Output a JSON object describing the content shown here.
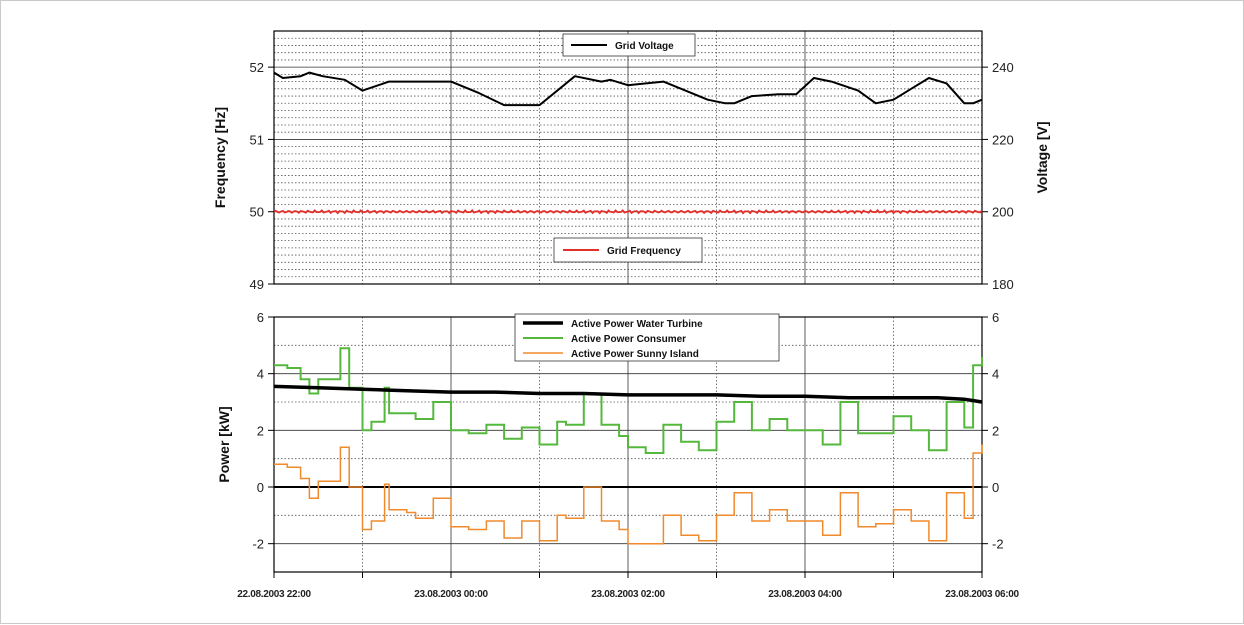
{
  "chart_data": [
    {
      "type": "line",
      "panel": "top",
      "ylabel": "Frequency [Hz]",
      "y2label": "Voltage [V]",
      "ylim": [
        49,
        52.5
      ],
      "y2lim": [
        180,
        250
      ],
      "yticks": [
        "49",
        "50",
        "51",
        "52"
      ],
      "y2ticks": [
        "180",
        "200",
        "220",
        "240"
      ],
      "grid": true,
      "legend": [
        "Grid Voltage",
        "Grid Frequency"
      ],
      "x_unit": "hours since 22.08.2003 22:00",
      "series": [
        {
          "name": "Grid Voltage",
          "axis": "right",
          "color": "#000000",
          "x": [
            0,
            0.1,
            0.3,
            0.4,
            0.55,
            0.8,
            1.0,
            1.3,
            1.6,
            1.85,
            2.0,
            2.3,
            2.6,
            3.0,
            3.4,
            3.7,
            3.8,
            4.0,
            4.4,
            4.7,
            4.9,
            5.1,
            5.2,
            5.4,
            5.7,
            5.9,
            6.1,
            6.3,
            6.6,
            6.8,
            7.0,
            7.2,
            7.4,
            7.6,
            7.8,
            7.9,
            8.0
          ],
          "values": [
            238.5,
            237,
            237.5,
            238.5,
            237.5,
            236.5,
            233.5,
            236,
            236,
            236,
            236,
            233,
            229.5,
            229.5,
            237.5,
            236,
            236.5,
            235,
            236,
            233,
            231,
            230,
            230,
            232,
            232.5,
            232.5,
            237,
            236,
            233.5,
            230,
            231,
            234,
            237,
            235.5,
            230,
            230,
            231
          ]
        },
        {
          "name": "Grid Frequency",
          "axis": "left",
          "color": "#e2302b",
          "x": [
            0,
            1,
            2,
            3,
            4,
            5,
            6,
            7,
            8
          ],
          "values": [
            50.0,
            50.0,
            50.0,
            50.0,
            50.0,
            50.0,
            50.0,
            50.0,
            50.0
          ]
        }
      ]
    },
    {
      "type": "line",
      "panel": "bottom",
      "ylabel": "Power [kW]",
      "ylim": [
        -3,
        6
      ],
      "yticks": [
        "-2",
        "0",
        "2",
        "4",
        "6"
      ],
      "y2ticks": [
        "-2",
        "0",
        "2",
        "4",
        "6"
      ],
      "grid": true,
      "legend": [
        "Active Power Water Turbine",
        "Active Power Consumer",
        "Active Power Sunny Island"
      ],
      "x_unit": "hours since 22.08.2003 22:00",
      "xtick_labels": [
        "22.08.2003 22:00",
        "23.08.2003 00:00",
        "23.08.2003 02:00",
        "23.08.2003 04:00",
        "23.08.2003 06:00"
      ],
      "series": [
        {
          "name": "Active Power Water Turbine",
          "color": "#000000",
          "x": [
            0,
            0.5,
            1.0,
            1.5,
            2.0,
            2.5,
            3.0,
            3.5,
            4.0,
            4.5,
            5.0,
            5.5,
            6.0,
            6.5,
            7.0,
            7.5,
            7.8,
            8.0
          ],
          "values": [
            3.55,
            3.5,
            3.45,
            3.4,
            3.35,
            3.35,
            3.3,
            3.3,
            3.25,
            3.25,
            3.25,
            3.2,
            3.2,
            3.15,
            3.15,
            3.15,
            3.1,
            3.0
          ]
        },
        {
          "name": "Active Power Consumer",
          "color": "#55b83d",
          "x": [
            0,
            0.15,
            0.3,
            0.4,
            0.5,
            0.75,
            0.85,
            1.0,
            1.1,
            1.25,
            1.3,
            1.5,
            1.6,
            1.8,
            2.0,
            2.2,
            2.4,
            2.6,
            2.8,
            3.0,
            3.2,
            3.3,
            3.5,
            3.7,
            3.9,
            4.0,
            4.2,
            4.4,
            4.6,
            4.8,
            5.0,
            5.2,
            5.4,
            5.6,
            5.8,
            6.0,
            6.2,
            6.4,
            6.6,
            6.8,
            7.0,
            7.2,
            7.4,
            7.6,
            7.8,
            7.9,
            8.0
          ],
          "values": [
            4.3,
            4.2,
            3.8,
            3.3,
            3.8,
            4.9,
            3.5,
            2.0,
            2.3,
            3.5,
            2.6,
            2.6,
            2.4,
            3.0,
            2.0,
            1.9,
            2.2,
            1.7,
            2.1,
            1.5,
            2.3,
            2.2,
            3.3,
            2.2,
            1.8,
            1.4,
            1.2,
            2.2,
            1.6,
            1.3,
            2.3,
            3.0,
            2.0,
            2.4,
            2.0,
            2.0,
            1.5,
            3.0,
            1.9,
            1.9,
            2.5,
            2.0,
            1.3,
            3.0,
            2.1,
            4.3,
            4.6
          ]
        },
        {
          "name": "Active Power Sunny Island",
          "color": "#f08a2c",
          "x": [
            0,
            0.15,
            0.3,
            0.4,
            0.5,
            0.75,
            0.85,
            1.0,
            1.1,
            1.25,
            1.3,
            1.5,
            1.6,
            1.8,
            2.0,
            2.2,
            2.4,
            2.6,
            2.8,
            3.0,
            3.2,
            3.3,
            3.5,
            3.7,
            3.9,
            4.0,
            4.2,
            4.4,
            4.6,
            4.8,
            5.0,
            5.2,
            5.4,
            5.6,
            5.8,
            6.0,
            6.2,
            6.4,
            6.6,
            6.8,
            7.0,
            7.2,
            7.4,
            7.6,
            7.8,
            7.9,
            8.0
          ],
          "values": [
            0.8,
            0.7,
            0.3,
            -0.4,
            0.2,
            1.4,
            0.0,
            -1.5,
            -1.2,
            0.1,
            -0.8,
            -0.9,
            -1.1,
            -0.4,
            -1.4,
            -1.5,
            -1.2,
            -1.8,
            -1.2,
            -1.9,
            -1.0,
            -1.1,
            0.0,
            -1.2,
            -1.5,
            -2.0,
            -2.0,
            -1.0,
            -1.7,
            -1.9,
            -1.0,
            -0.2,
            -1.2,
            -0.8,
            -1.2,
            -1.2,
            -1.7,
            -0.2,
            -1.4,
            -1.3,
            -0.8,
            -1.2,
            -1.9,
            -0.2,
            -1.1,
            1.2,
            1.5
          ]
        }
      ]
    }
  ]
}
